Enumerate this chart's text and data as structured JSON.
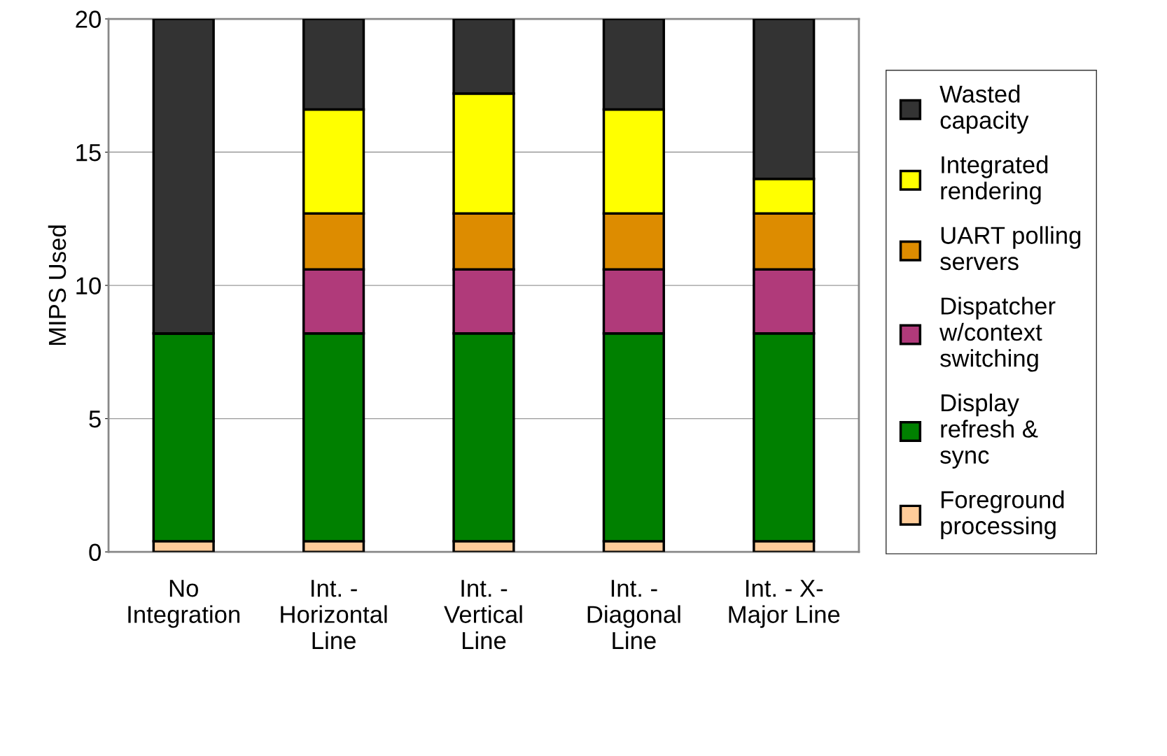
{
  "chart_data": {
    "type": "bar",
    "stacked": true,
    "ylabel": "MIPS Used",
    "categories": [
      "No\nIntegration",
      "Int. -\nHorizontal\nLine",
      "Int. -\nVertical\nLine",
      "Int. -\nDiagonal\nLine",
      "Int. - X-\nMajor Line"
    ],
    "series": [
      {
        "name": "Foreground\nprocessing",
        "color": "#ffcc99",
        "values": [
          0.4,
          0.4,
          0.4,
          0.4,
          0.4
        ]
      },
      {
        "name": "Display\nrefresh &\nsync",
        "color": "#008000",
        "values": [
          7.8,
          7.8,
          7.8,
          7.8,
          7.8
        ]
      },
      {
        "name": "Dispatcher\nw/context\nswitching",
        "color": "#b03a7a",
        "values": [
          0,
          2.4,
          2.4,
          2.4,
          2.4
        ]
      },
      {
        "name": "UART polling\nservers",
        "color": "#dd8c00",
        "values": [
          0,
          2.1,
          2.1,
          2.1,
          2.1
        ]
      },
      {
        "name": "Integrated\nrendering",
        "color": "#ffff00",
        "values": [
          0,
          3.9,
          4.5,
          3.9,
          1.3
        ]
      },
      {
        "name": "Wasted\ncapacity",
        "color": "#333333",
        "values": [
          11.8,
          3.4,
          2.8,
          3.4,
          6.0
        ]
      }
    ],
    "ylim": [
      0,
      20
    ],
    "yticks": [
      0,
      5,
      10,
      15,
      20
    ],
    "grid": "y",
    "legend": "right"
  }
}
